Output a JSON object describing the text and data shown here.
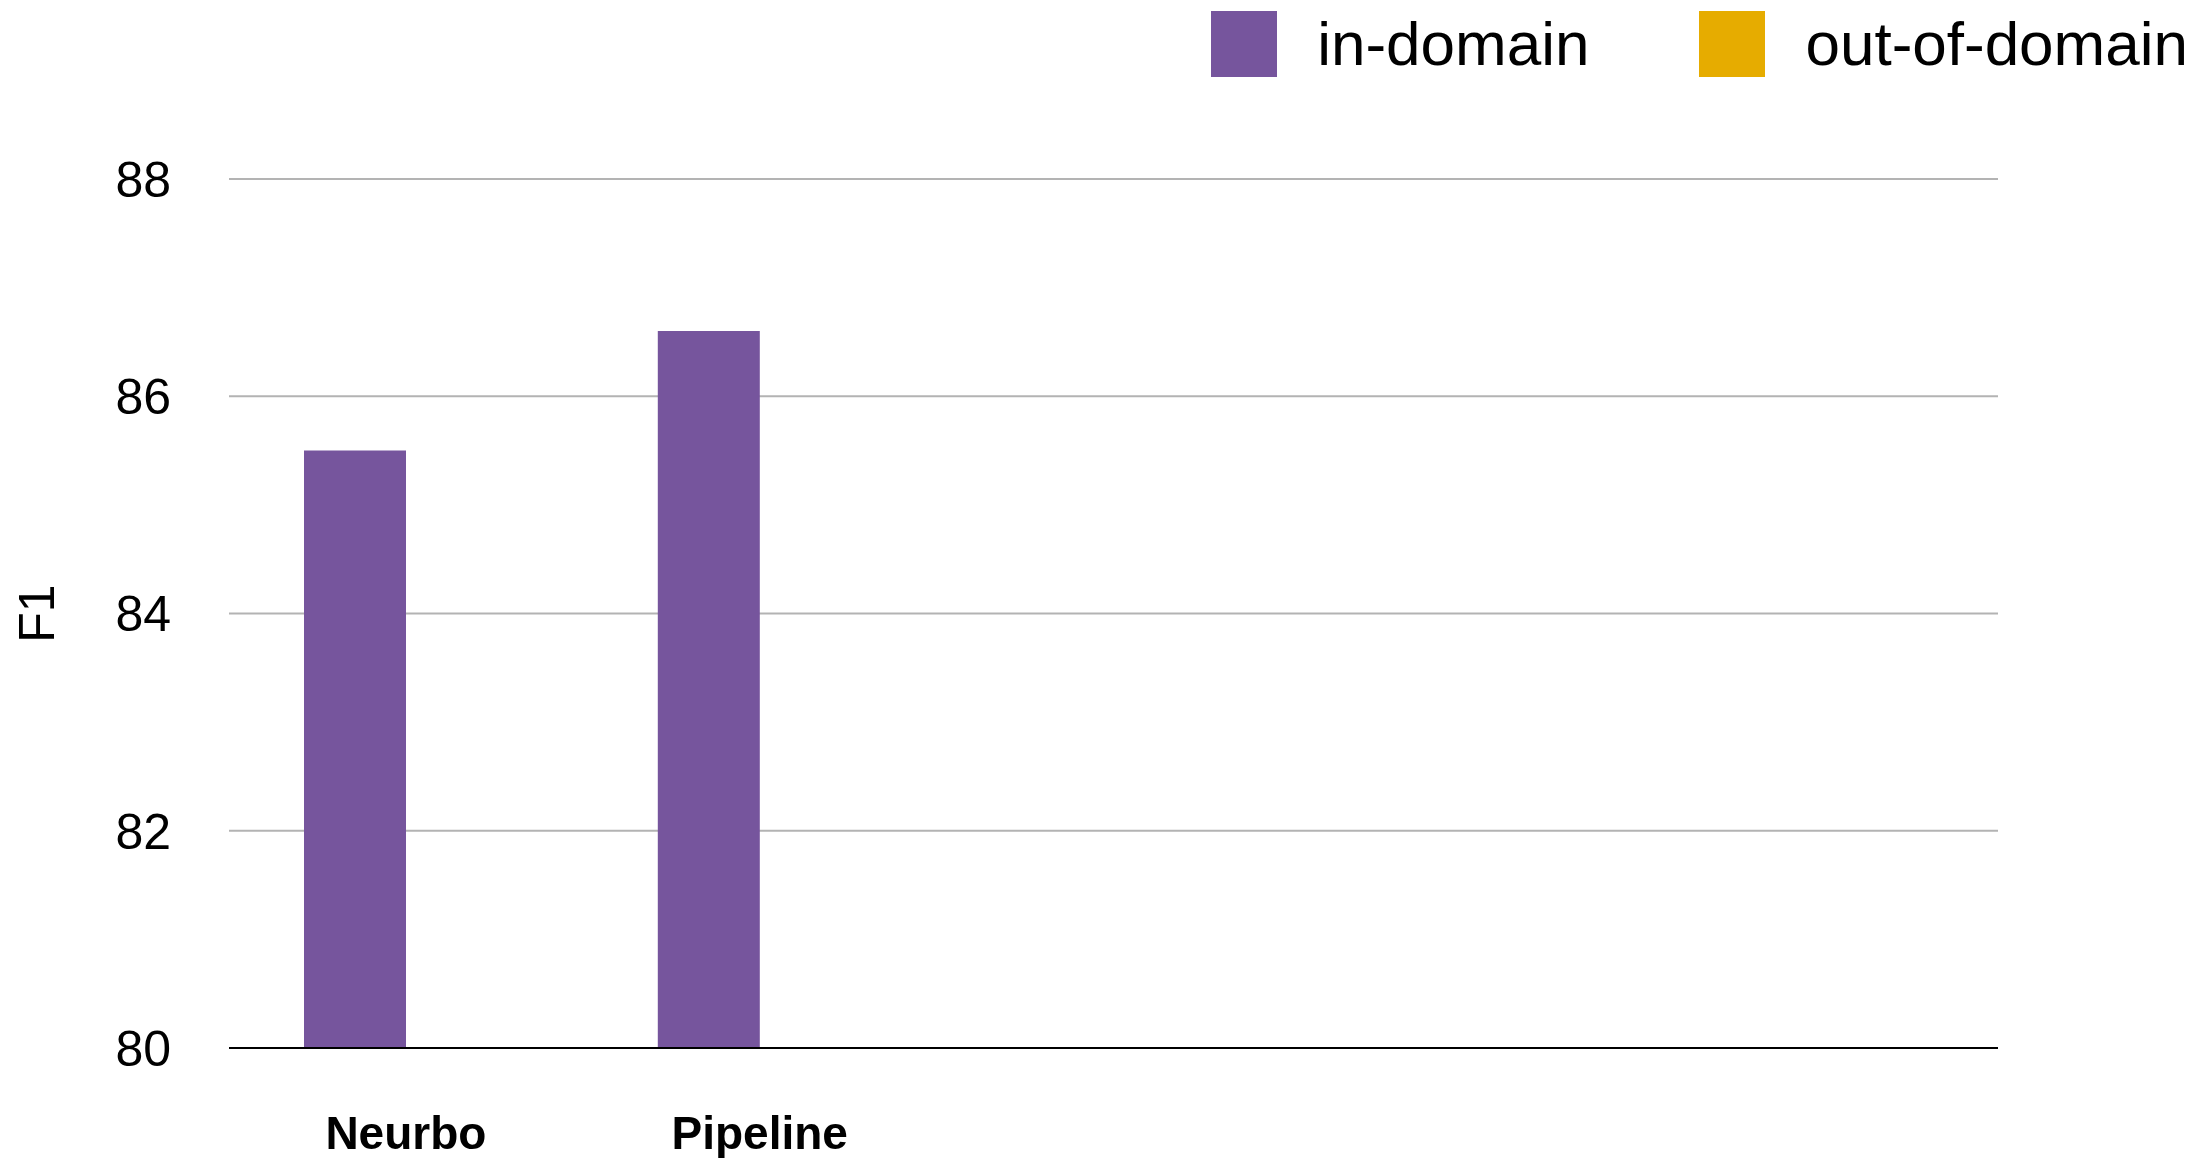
{
  "chart_data": {
    "type": "bar",
    "ylabel": "F1",
    "categories": [
      "Neurbo",
      "Pipeline",
      null,
      null,
      null
    ],
    "series": [
      {
        "name": "in-domain",
        "color": "#76559d",
        "values": [
          85.5,
          86.6,
          null,
          null,
          null
        ]
      },
      {
        "name": "out-of-domain",
        "color": "#e6ac00",
        "values": [
          null,
          null,
          null,
          null,
          null
        ]
      }
    ],
    "ylim": [
      80,
      88
    ],
    "yticks": [
      80,
      82,
      84,
      86,
      88
    ],
    "grid": "y",
    "legend": "top right"
  }
}
